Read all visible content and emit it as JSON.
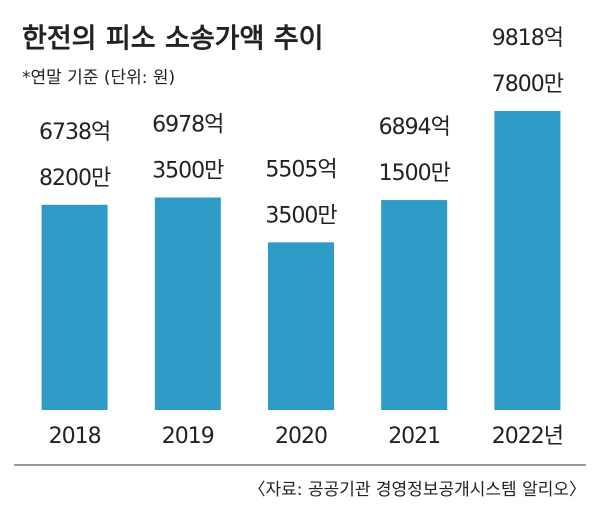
{
  "chart_data": {
    "type": "bar",
    "title": "한전의 피소 소송가액 추이",
    "subtitle": "*연말 기준 (단위: 원)",
    "source": "〈자료: 공공기관 경영정보공개시스템 알리오〉",
    "categories": [
      "2018",
      "2019",
      "2020",
      "2021",
      "2022년"
    ],
    "values": [
      673882000000,
      697835000000,
      550535000000,
      689415000000,
      981878000000
    ],
    "value_labels": [
      [
        "6738억",
        "8200만"
      ],
      [
        "6978억",
        "3500만"
      ],
      [
        "5505억",
        "3500만"
      ],
      [
        "6894억",
        "1500만"
      ],
      [
        "9818억",
        "7800만"
      ]
    ],
    "color": "#2e9bc6"
  }
}
